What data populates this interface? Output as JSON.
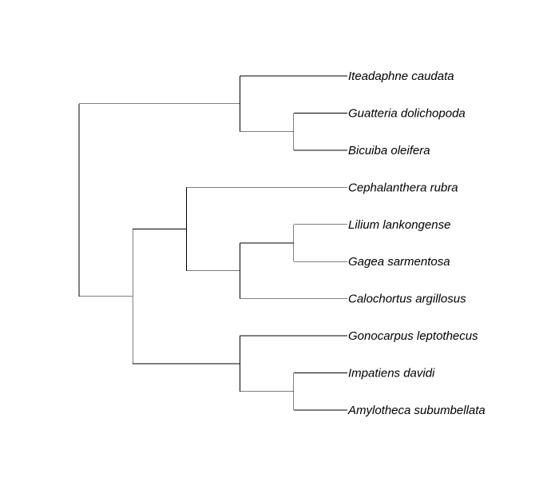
{
  "tree": {
    "line_color": "#000000",
    "root": {
      "children": [
        {
          "children": [
            {
              "label": "Iteadaphne caudata"
            },
            {
              "children": [
                {
                  "label": "Guatteria dolichopoda"
                },
                {
                  "label": "Bicuiba oleifera"
                }
              ]
            }
          ]
        },
        {
          "children": [
            {
              "children": [
                {
                  "label": "Cephalanthera rubra"
                },
                {
                  "children": [
                    {
                      "children": [
                        {
                          "label": "Lilium lankongense"
                        },
                        {
                          "label": "Gagea sarmentosa"
                        }
                      ]
                    },
                    {
                      "label": "Calochortus argillosus"
                    }
                  ]
                }
              ]
            },
            {
              "children": [
                {
                  "label": "Gonocarpus leptothecus"
                },
                {
                  "children": [
                    {
                      "label": "Impatiens davidi"
                    },
                    {
                      "label": "Amylotheca subumbellata"
                    }
                  ]
                }
              ]
            }
          ]
        }
      ]
    }
  }
}
